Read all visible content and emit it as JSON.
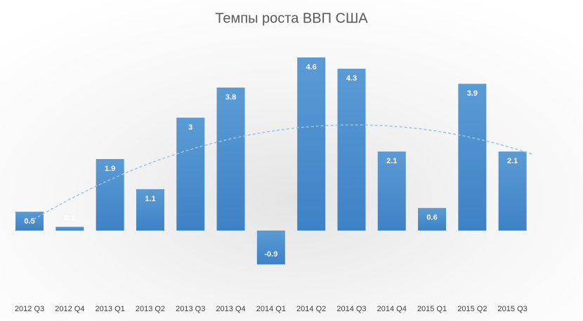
{
  "chart_data": {
    "type": "bar",
    "title": "Темпы роста ВВП США",
    "categories": [
      "2012 Q3",
      "2012 Q4",
      "2013 Q1",
      "2013 Q2",
      "2013 Q3",
      "2013 Q4",
      "2014 Q1",
      "2014 Q2",
      "2014 Q3",
      "2014 Q4",
      "2015 Q1",
      "2015 Q2",
      "2015 Q3"
    ],
    "values": [
      0.5,
      0.1,
      1.9,
      1.1,
      3,
      3.8,
      -0.9,
      4.6,
      4.3,
      2.1,
      0.6,
      3.9,
      2.1
    ],
    "color": "#5b9bd5",
    "ylim": [
      -1.8,
      5
    ],
    "trendline": {
      "kind": "polynomial",
      "order": 2,
      "color": "#9dc3e6",
      "dashed": true
    }
  }
}
